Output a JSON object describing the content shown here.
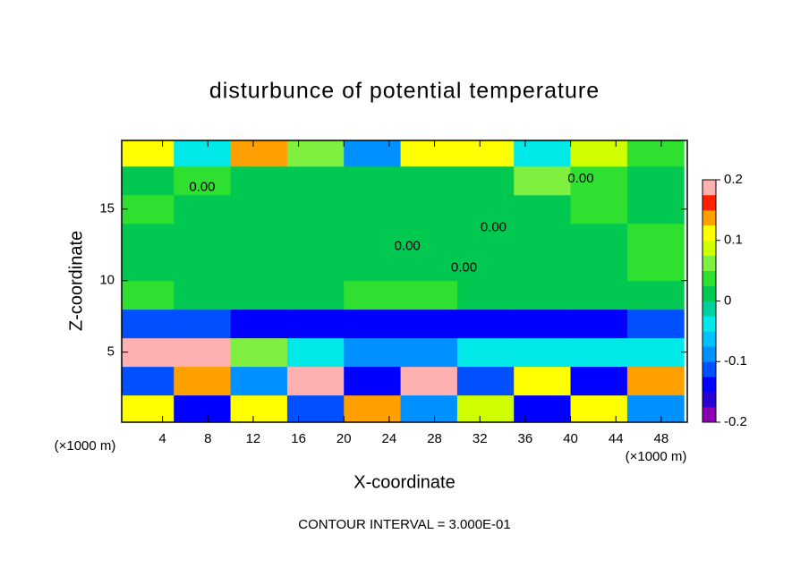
{
  "chart_data": {
    "type": "heatmap",
    "title": "disturbunce of potential temperature",
    "x_label": "X-coordinate",
    "y_label": "Z-coordinate",
    "x_unit": "(×1000 m)",
    "footer": "CONTOUR INTERVAL = 3.000E-01",
    "x": [
      2.5,
      7.5,
      12.5,
      17.5,
      22.5,
      27.5,
      32.5,
      37.5,
      42.5,
      47.5
    ],
    "y": [
      1,
      3,
      5,
      7,
      9,
      11,
      13,
      15,
      17,
      19
    ],
    "z": [
      [
        0.12,
        -0.15,
        0.1,
        -0.12,
        0.15,
        -0.1,
        0.08,
        -0.15,
        0.12,
        -0.1
      ],
      [
        -0.12,
        0.15,
        -0.1,
        0.18,
        -0.14,
        0.2,
        -0.12,
        0.1,
        -0.15,
        0.14
      ],
      [
        0.2,
        0.2,
        0.05,
        -0.05,
        -0.1,
        -0.08,
        -0.05,
        -0.03,
        -0.05,
        -0.05
      ],
      [
        -0.12,
        -0.12,
        -0.14,
        -0.14,
        -0.15,
        -0.15,
        -0.14,
        -0.14,
        -0.13,
        -0.12
      ],
      [
        0.03,
        0.02,
        0.02,
        0.02,
        0.04,
        0.03,
        0.02,
        0.02,
        0.02,
        0.02
      ],
      [
        0.02,
        0.02,
        0.02,
        0.02,
        0.02,
        0.02,
        0.02,
        0.02,
        0.02,
        0.03
      ],
      [
        0.02,
        0.02,
        0.02,
        0.02,
        0.02,
        0.02,
        0.02,
        0.02,
        0.02,
        0.04
      ],
      [
        0.03,
        0.02,
        0.02,
        0.02,
        0.02,
        0.02,
        0.02,
        0.02,
        0.03,
        0.02
      ],
      [
        0.02,
        0.03,
        0.02,
        0.02,
        0.02,
        0.02,
        0.02,
        0.05,
        0.03,
        0.02
      ],
      [
        0.1,
        -0.05,
        0.15,
        0.05,
        -0.08,
        0.1,
        0.12,
        -0.05,
        0.08,
        0.03
      ]
    ],
    "xlim": [
      0.4,
      50.3
    ],
    "ylim": [
      0.1,
      19.8
    ],
    "xticks": [
      4,
      8,
      12,
      16,
      20,
      24,
      28,
      32,
      36,
      40,
      44,
      48
    ],
    "yticks": [
      5,
      10,
      15
    ],
    "clim": [
      -0.2,
      0.2
    ],
    "cticks": [
      -0.2,
      -0.1,
      0,
      0.1,
      0.2
    ],
    "colors": [
      "#8a00b0",
      "#2a00d0",
      "#0000ff",
      "#0050ff",
      "#0090ff",
      "#00c0ff",
      "#00e8e8",
      "#00d0a0",
      "#00c850",
      "#30e030",
      "#80f040",
      "#d0ff00",
      "#ffff00",
      "#ffa000",
      "#ff2000",
      "#ffb0b0"
    ],
    "contour_labels": [
      {
        "text": "0.00",
        "x": 7.5,
        "y": 16.5
      },
      {
        "text": "0.00",
        "x": 40.9,
        "y": 17.1
      },
      {
        "text": "0.00",
        "x": 33.2,
        "y": 13.7
      },
      {
        "text": "0.00",
        "x": 25.6,
        "y": 12.4
      },
      {
        "text": "0.00",
        "x": 30.6,
        "y": 10.9
      }
    ]
  }
}
